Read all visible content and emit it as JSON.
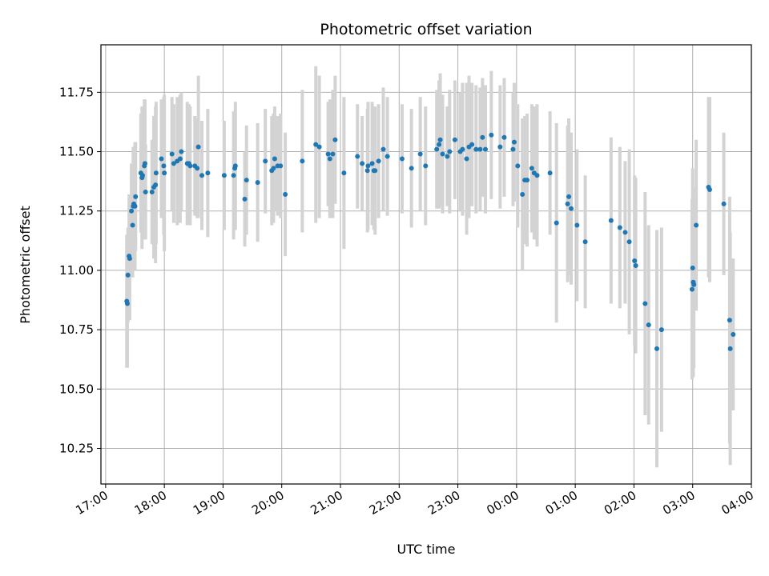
{
  "chart_data": {
    "type": "scatter",
    "title": "Photometric offset variation",
    "xlabel": "UTC time",
    "ylabel": "Photometric offset",
    "x_unit": "hours (UTC, continuous from 17:00 of first night; 24 = 00:00 next day)",
    "xlim": [
      16.92,
      28.0
    ],
    "ylim": [
      10.1,
      11.95
    ],
    "grid": true,
    "x_ticks": [
      17,
      18,
      19,
      20,
      21,
      22,
      23,
      24,
      25,
      26,
      27,
      28
    ],
    "x_tick_labels": [
      "17:00",
      "18:00",
      "19:00",
      "20:00",
      "21:00",
      "22:00",
      "23:00",
      "00:00",
      "01:00",
      "02:00",
      "03:00",
      "04:00"
    ],
    "y_ticks": [
      10.25,
      10.5,
      10.75,
      11.0,
      11.25,
      11.5,
      11.75
    ],
    "y_tick_labels": [
      "10.25",
      "10.50",
      "10.75",
      "11.00",
      "11.25",
      "11.50",
      "11.75"
    ],
    "marker_color": "#1f77b4",
    "errorbar_color": "#d3d3d3",
    "points": [
      [
        17.36,
        10.87,
        0.28
      ],
      [
        17.37,
        10.86,
        0.27
      ],
      [
        17.38,
        10.98,
        0.2
      ],
      [
        17.4,
        11.06,
        0.26
      ],
      [
        17.41,
        11.05,
        0.26
      ],
      [
        17.44,
        11.25,
        0.2
      ],
      [
        17.46,
        11.19,
        0.22
      ],
      [
        17.47,
        11.27,
        0.25
      ],
      [
        17.48,
        11.28,
        0.24
      ],
      [
        17.5,
        11.27,
        0.27
      ],
      [
        17.51,
        11.31,
        0.23
      ],
      [
        17.6,
        11.41,
        0.25
      ],
      [
        17.62,
        11.39,
        0.3
      ],
      [
        17.63,
        11.4,
        0.27
      ],
      [
        17.66,
        11.44,
        0.28
      ],
      [
        17.67,
        11.45,
        0.27
      ],
      [
        17.68,
        11.33,
        0.2
      ],
      [
        17.79,
        11.33,
        0.22
      ],
      [
        17.82,
        11.35,
        0.3
      ],
      [
        17.85,
        11.36,
        0.33
      ],
      [
        17.86,
        11.41,
        0.3
      ],
      [
        17.95,
        11.47,
        0.25
      ],
      [
        17.99,
        11.44,
        0.29
      ],
      [
        18.0,
        11.41,
        0.33
      ],
      [
        18.13,
        11.49,
        0.24
      ],
      [
        18.16,
        11.45,
        0.25
      ],
      [
        18.22,
        11.46,
        0.27
      ],
      [
        18.27,
        11.47,
        0.27
      ],
      [
        18.29,
        11.5,
        0.25
      ],
      [
        18.39,
        11.45,
        0.26
      ],
      [
        18.42,
        11.45,
        0.25
      ],
      [
        18.44,
        11.44,
        0.25
      ],
      [
        18.52,
        11.44,
        0.21
      ],
      [
        18.56,
        11.43,
        0.21
      ],
      [
        18.58,
        11.52,
        0.3
      ],
      [
        18.64,
        11.4,
        0.23
      ],
      [
        18.74,
        11.41,
        0.27
      ],
      [
        19.02,
        11.4,
        0.23
      ],
      [
        19.18,
        11.4,
        0.27
      ],
      [
        19.2,
        11.43,
        0.24
      ],
      [
        19.21,
        11.44,
        0.27
      ],
      [
        19.37,
        11.3,
        0.2
      ],
      [
        19.4,
        11.38,
        0.23
      ],
      [
        19.59,
        11.37,
        0.25
      ],
      [
        19.72,
        11.46,
        0.22
      ],
      [
        19.83,
        11.42,
        0.23
      ],
      [
        19.86,
        11.43,
        0.23
      ],
      [
        19.88,
        11.47,
        0.22
      ],
      [
        19.93,
        11.44,
        0.21
      ],
      [
        19.98,
        11.44,
        0.22
      ],
      [
        20.06,
        11.32,
        0.26
      ],
      [
        20.35,
        11.46,
        0.3
      ],
      [
        20.58,
        11.53,
        0.33
      ],
      [
        20.64,
        11.52,
        0.3
      ],
      [
        20.79,
        11.49,
        0.22
      ],
      [
        20.82,
        11.47,
        0.25
      ],
      [
        20.87,
        11.49,
        0.27
      ],
      [
        20.91,
        11.55,
        0.27
      ],
      [
        21.06,
        11.41,
        0.32
      ],
      [
        21.29,
        11.48,
        0.22
      ],
      [
        21.37,
        11.45,
        0.2
      ],
      [
        21.46,
        11.42,
        0.26
      ],
      [
        21.47,
        11.44,
        0.27
      ],
      [
        21.54,
        11.45,
        0.26
      ],
      [
        21.57,
        11.42,
        0.25
      ],
      [
        21.59,
        11.42,
        0.27
      ],
      [
        21.65,
        11.46,
        0.24
      ],
      [
        21.73,
        11.51,
        0.26
      ],
      [
        21.8,
        11.48,
        0.25
      ],
      [
        22.05,
        11.47,
        0.23
      ],
      [
        22.21,
        11.43,
        0.25
      ],
      [
        22.36,
        11.49,
        0.24
      ],
      [
        22.45,
        11.44,
        0.25
      ],
      [
        22.64,
        11.51,
        0.25
      ],
      [
        22.68,
        11.53,
        0.27
      ],
      [
        22.7,
        11.55,
        0.28
      ],
      [
        22.74,
        11.49,
        0.25
      ],
      [
        22.82,
        11.48,
        0.21
      ],
      [
        22.86,
        11.5,
        0.26
      ],
      [
        22.95,
        11.55,
        0.25
      ],
      [
        23.04,
        11.5,
        0.25
      ],
      [
        23.08,
        11.51,
        0.28
      ],
      [
        23.15,
        11.47,
        0.32
      ],
      [
        23.19,
        11.52,
        0.3
      ],
      [
        23.24,
        11.53,
        0.26
      ],
      [
        23.31,
        11.51,
        0.27
      ],
      [
        23.38,
        11.51,
        0.26
      ],
      [
        23.42,
        11.56,
        0.25
      ],
      [
        23.47,
        11.51,
        0.27
      ],
      [
        23.57,
        11.57,
        0.27
      ],
      [
        23.72,
        11.52,
        0.26
      ],
      [
        23.79,
        11.56,
        0.25
      ],
      [
        23.94,
        11.51,
        0.24
      ],
      [
        23.96,
        11.54,
        0.25
      ],
      [
        24.02,
        11.44,
        0.26
      ],
      [
        24.1,
        11.32,
        0.32
      ],
      [
        24.14,
        11.38,
        0.27
      ],
      [
        24.18,
        11.38,
        0.28
      ],
      [
        24.26,
        11.43,
        0.27
      ],
      [
        24.3,
        11.41,
        0.28
      ],
      [
        24.35,
        11.4,
        0.3
      ],
      [
        24.57,
        11.41,
        0.26
      ],
      [
        24.68,
        11.2,
        0.42
      ],
      [
        24.87,
        11.28,
        0.33
      ],
      [
        24.89,
        11.31,
        0.33
      ],
      [
        24.93,
        11.26,
        0.32
      ],
      [
        25.03,
        11.19,
        0.32
      ],
      [
        25.17,
        11.12,
        0.28
      ],
      [
        25.61,
        11.21,
        0.35
      ],
      [
        25.76,
        11.18,
        0.34
      ],
      [
        25.85,
        11.16,
        0.3
      ],
      [
        25.92,
        11.12,
        0.39
      ],
      [
        26.01,
        11.04,
        0.36
      ],
      [
        26.03,
        11.02,
        0.37
      ],
      [
        26.19,
        10.86,
        0.47
      ],
      [
        26.25,
        10.77,
        0.42
      ],
      [
        26.39,
        10.67,
        0.5
      ],
      [
        26.47,
        10.75,
        0.43
      ],
      [
        26.99,
        10.92,
        0.38
      ],
      [
        27.0,
        11.01,
        0.42
      ],
      [
        27.01,
        10.95,
        0.4
      ],
      [
        27.02,
        10.94,
        0.35
      ],
      [
        27.06,
        11.19,
        0.36
      ],
      [
        27.27,
        11.35,
        0.38
      ],
      [
        27.29,
        11.34,
        0.39
      ],
      [
        27.53,
        11.28,
        0.3
      ],
      [
        27.63,
        10.79,
        0.52
      ],
      [
        27.64,
        10.67,
        0.49
      ],
      [
        27.69,
        10.73,
        0.32
      ]
    ]
  }
}
